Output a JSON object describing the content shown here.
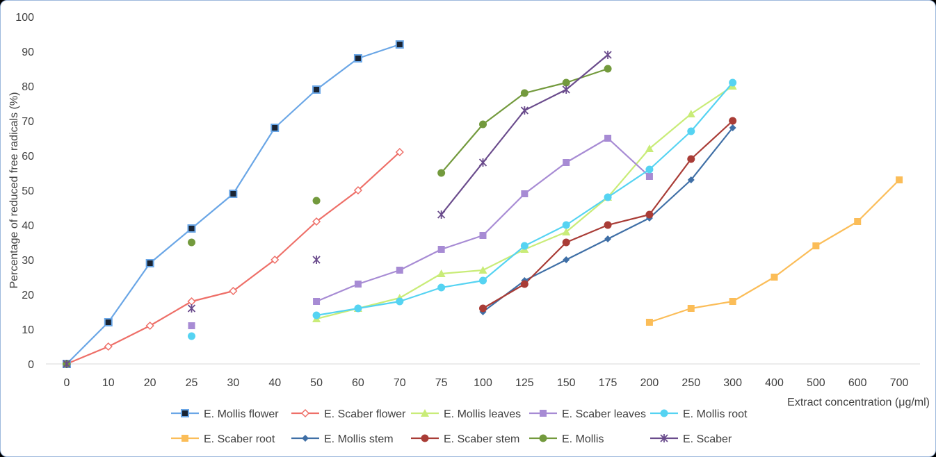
{
  "chart_data": {
    "type": "line",
    "title": "",
    "xlabel": "Extract concentration (μg/ml)",
    "ylabel": "Percentage of reduced free radicals (%)",
    "ylim": [
      0,
      100
    ],
    "yticks": [
      "0",
      "10",
      "20",
      "30",
      "40",
      "50",
      "60",
      "70",
      "80",
      "90",
      "100"
    ],
    "categories": [
      "0",
      "10",
      "20",
      "25",
      "30",
      "40",
      "50",
      "60",
      "70",
      "75",
      "100",
      "125",
      "150",
      "175",
      "200",
      "250",
      "300",
      "400",
      "500",
      "600",
      "700"
    ],
    "grid": false,
    "legend_position": "bottom",
    "series": [
      {
        "name": "E. Mollis flower",
        "color": "#6aa6e6",
        "marker": "square-dark",
        "line": true,
        "points": [
          [
            "0",
            0
          ],
          [
            "10",
            12
          ],
          [
            "20",
            29
          ],
          [
            "25",
            39
          ],
          [
            "30",
            49
          ],
          [
            "40",
            68
          ],
          [
            "50",
            79
          ],
          [
            "60",
            88
          ],
          [
            "70",
            92
          ]
        ]
      },
      {
        "name": "E. Scaber flower",
        "color": "#ee6f68",
        "marker": "diamond-open",
        "line": true,
        "points": [
          [
            "0",
            0
          ],
          [
            "10",
            5
          ],
          [
            "20",
            11
          ],
          [
            "25",
            18
          ],
          [
            "30",
            21
          ],
          [
            "40",
            30
          ],
          [
            "50",
            41
          ],
          [
            "60",
            50
          ],
          [
            "70",
            61
          ]
        ]
      },
      {
        "name": "E. Mollis leaves",
        "color": "#c9ec78",
        "marker": "triangle",
        "line": true,
        "points": [
          [
            "50",
            13
          ],
          [
            "60",
            16
          ],
          [
            "70",
            19
          ],
          [
            "75",
            26
          ],
          [
            "100",
            27
          ],
          [
            "125",
            33
          ],
          [
            "150",
            38
          ],
          [
            "175",
            48
          ],
          [
            "200",
            62
          ],
          [
            "250",
            72
          ],
          [
            "300",
            80
          ]
        ]
      },
      {
        "name": "E. Scaber leaves",
        "color": "#a78bd4",
        "marker": "square",
        "line": true,
        "points": [
          [
            "50",
            18
          ],
          [
            "60",
            23
          ],
          [
            "70",
            27
          ],
          [
            "75",
            33
          ],
          [
            "100",
            37
          ],
          [
            "125",
            49
          ],
          [
            "150",
            58
          ],
          [
            "175",
            65
          ],
          [
            "200",
            54
          ]
        ],
        "extra_points": [
          [
            "25",
            11
          ]
        ]
      },
      {
        "name": "E. Mollis root",
        "color": "#55d3f2",
        "marker": "circle",
        "line": true,
        "points": [
          [
            "50",
            14
          ],
          [
            "60",
            16
          ],
          [
            "70",
            18
          ],
          [
            "75",
            22
          ],
          [
            "100",
            24
          ],
          [
            "125",
            34
          ],
          [
            "150",
            40
          ],
          [
            "175",
            48
          ],
          [
            "200",
            56
          ],
          [
            "250",
            67
          ],
          [
            "300",
            81
          ]
        ],
        "extra_points": [
          [
            "25",
            8
          ]
        ]
      },
      {
        "name": "E. Scaber root",
        "color": "#fbbd58",
        "marker": "square",
        "line": true,
        "points": [
          [
            "200",
            12
          ],
          [
            "250",
            16
          ],
          [
            "300",
            18
          ],
          [
            "400",
            25
          ],
          [
            "500",
            34
          ],
          [
            "600",
            41
          ],
          [
            "700",
            53
          ]
        ]
      },
      {
        "name": "E. Mollis stem",
        "color": "#3f6fa6",
        "marker": "diamond",
        "line": true,
        "points": [
          [
            "100",
            15
          ],
          [
            "125",
            24
          ],
          [
            "150",
            30
          ],
          [
            "175",
            36
          ],
          [
            "200",
            42
          ],
          [
            "250",
            53
          ],
          [
            "300",
            68
          ]
        ]
      },
      {
        "name": "E. Scaber stem",
        "color": "#a93c36",
        "marker": "circle",
        "line": true,
        "points": [
          [
            "100",
            16
          ],
          [
            "125",
            23
          ],
          [
            "150",
            35
          ],
          [
            "175",
            40
          ],
          [
            "200",
            43
          ],
          [
            "250",
            59
          ],
          [
            "300",
            70
          ]
        ]
      },
      {
        "name": "E. Mollis",
        "color": "#739a3d",
        "marker": "circle",
        "line": true,
        "points": [
          [
            "75",
            55
          ],
          [
            "100",
            69
          ],
          [
            "125",
            78
          ],
          [
            "150",
            81
          ],
          [
            "175",
            85
          ]
        ],
        "extra_points": [
          [
            "0",
            0
          ],
          [
            "25",
            35
          ],
          [
            "50",
            47
          ]
        ]
      },
      {
        "name": "E. Scaber",
        "color": "#6a4b8c",
        "marker": "star",
        "line": true,
        "points": [
          [
            "75",
            43
          ],
          [
            "100",
            58
          ],
          [
            "125",
            73
          ],
          [
            "150",
            79
          ],
          [
            "175",
            89
          ]
        ],
        "extra_points": [
          [
            "0",
            0
          ],
          [
            "25",
            16
          ],
          [
            "50",
            30
          ]
        ]
      }
    ]
  }
}
